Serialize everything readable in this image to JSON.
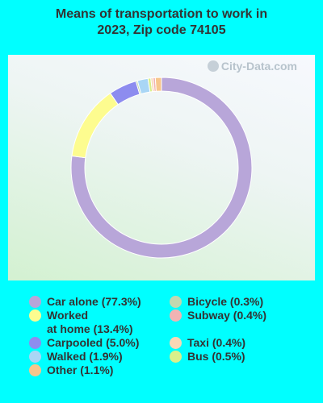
{
  "watermark": "City-Data.com",
  "chart_data": {
    "type": "pie",
    "variant": "donut",
    "title_lines": [
      "Means of transportation to work in",
      "2023, Zip code 74105"
    ],
    "slices": [
      {
        "label": "Car alone (77.3%)",
        "value": 77.3,
        "color": "#b8a6d9"
      },
      {
        "label": "Worked\nat home (13.4%)",
        "value": 13.4,
        "color": "#fdfc8f"
      },
      {
        "label": "Carpooled (5.0%)",
        "value": 5.0,
        "color": "#8d8cef"
      },
      {
        "label": "Bicycle (0.3%)",
        "value": 0.3,
        "color": "#c2d8b0"
      },
      {
        "label": "Walked (1.9%)",
        "value": 1.9,
        "color": "#a9d6f5"
      },
      {
        "label": "Bus (0.5%)",
        "value": 0.5,
        "color": "#d9f08a"
      },
      {
        "label": "Taxi (0.4%)",
        "value": 0.4,
        "color": "#f9d8b6"
      },
      {
        "label": "Subway (0.4%)",
        "value": 0.4,
        "color": "#f2b3b3"
      },
      {
        "label": "Other (1.1%)",
        "value": 1.1,
        "color": "#f7c68c"
      }
    ],
    "legend_order": [
      "Car alone (77.3%)",
      "Worked\nat home (13.4%)",
      "Carpooled (5.0%)",
      "Walked (1.9%)",
      "Other (1.1%)",
      "Bicycle (0.3%)",
      "Subway (0.4%)",
      "Taxi (0.4%)",
      "Bus (0.5%)"
    ]
  }
}
